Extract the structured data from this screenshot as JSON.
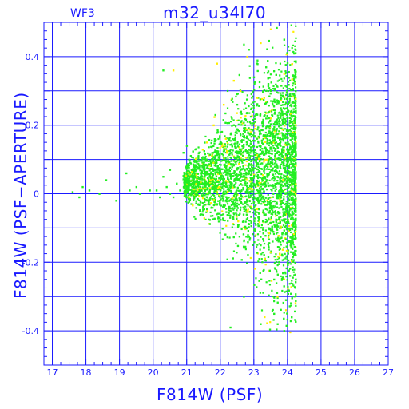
{
  "chart_data": {
    "type": "scatter",
    "title": "m32_u34l70",
    "chip_label": "WF3",
    "xlabel": "F814W (PSF)",
    "ylabel": "F814W (PSF−APERTURE)",
    "xlim": [
      16.75,
      27
    ],
    "ylim": [
      -0.5,
      0.5
    ],
    "xticks": [
      17,
      18,
      19,
      20,
      21,
      22,
      23,
      24,
      25,
      26,
      27
    ],
    "yticks": [
      -0.4,
      -0.2,
      0,
      0.2,
      0.4
    ],
    "ytick_labels": [
      "-0.4",
      "-0.2",
      "0",
      "0.2",
      "0.4"
    ],
    "grid": true,
    "series": [
      {
        "color": "#22ee22",
        "points": [
          [
            17.6,
            0.005
          ],
          [
            17.8,
            -0.01
          ],
          [
            17.9,
            0.02
          ],
          [
            18.1,
            0.01
          ],
          [
            18.4,
            0.0
          ],
          [
            18.9,
            -0.02
          ],
          [
            19.3,
            0.01
          ],
          [
            19.6,
            0.0
          ],
          [
            19.9,
            0.01
          ],
          [
            20.1,
            0.01
          ],
          [
            20.2,
            -0.01
          ],
          [
            20.4,
            0.02
          ],
          [
            20.5,
            0.0
          ],
          [
            20.6,
            -0.01
          ],
          [
            20.7,
            0.03
          ],
          [
            20.8,
            0.01
          ],
          [
            19.5,
            0.02
          ],
          [
            18.6,
            0.04
          ],
          [
            19.2,
            0.06
          ],
          [
            20.3,
            0.05
          ],
          [
            20.3,
            0.36
          ],
          [
            20.9,
            0.12
          ],
          [
            21.0,
            0.14
          ],
          [
            20.5,
            0.07
          ],
          [
            22.3,
            -0.39
          ],
          [
            23.2,
            -0.38
          ],
          [
            23.9,
            -0.4
          ],
          [
            23.6,
            -0.35
          ],
          [
            22.7,
            -0.3
          ],
          [
            21.5,
            0.0
          ],
          [
            21.8,
            0.02
          ],
          [
            22.2,
            0.06
          ],
          [
            22.6,
            0.1
          ],
          [
            23.0,
            0.12
          ],
          [
            23.4,
            0.16
          ],
          [
            23.8,
            0.2
          ],
          [
            24.1,
            0.24
          ],
          [
            23.5,
            0.3
          ],
          [
            23.0,
            0.34
          ],
          [
            22.5,
            0.26
          ],
          [
            22.0,
            0.18
          ],
          [
            21.6,
            0.1
          ],
          [
            23.9,
            0.45
          ],
          [
            24.0,
            -0.2
          ],
          [
            23.6,
            -0.25
          ],
          [
            23.2,
            -0.15
          ],
          [
            22.8,
            -0.1
          ],
          [
            22.3,
            -0.05
          ],
          [
            21.9,
            -0.03
          ]
        ]
      },
      {
        "color": "#ffee00",
        "points": [
          [
            22.1,
            0.26
          ],
          [
            22.4,
            0.33
          ],
          [
            21.8,
            0.2
          ],
          [
            21.9,
            0.38
          ],
          [
            23.2,
            0.44
          ],
          [
            22.8,
            0.4
          ],
          [
            23.5,
            0.48
          ],
          [
            22.6,
            0.3
          ],
          [
            21.6,
            0.15
          ],
          [
            23.9,
            0.35
          ],
          [
            24.0,
            0.05
          ],
          [
            23.8,
            -0.1
          ],
          [
            23.5,
            0.22
          ],
          [
            22.9,
            0.18
          ],
          [
            23.7,
            -0.3
          ],
          [
            21.7,
            0.04
          ],
          [
            22.2,
            0.12
          ],
          [
            23.1,
            0.28
          ],
          [
            23.4,
            0.1
          ],
          [
            20.6,
            0.36
          ]
        ]
      }
    ]
  }
}
